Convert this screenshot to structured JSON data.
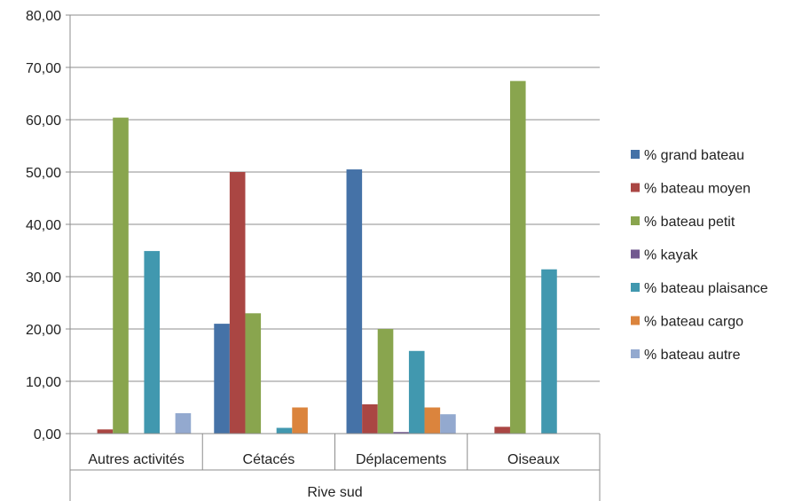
{
  "chart_data": {
    "type": "bar",
    "title": "",
    "xlabel": "",
    "ylabel": "",
    "ylim": [
      0,
      80
    ],
    "yticks": [
      "0,00",
      "10,00",
      "20,00",
      "30,00",
      "40,00",
      "50,00",
      "60,00",
      "70,00",
      "80,00"
    ],
    "ytick_values": [
      0,
      10,
      20,
      30,
      40,
      50,
      60,
      70,
      80
    ],
    "grid": true,
    "legend_position": "right",
    "group_label": "Rive sud",
    "categories": [
      "Autres activités",
      "Cétacés",
      "Déplacements",
      "Oiseaux"
    ],
    "series": [
      {
        "name": "% grand bateau",
        "color": "#4572a7",
        "values": [
          0,
          21,
          50.5,
          0
        ]
      },
      {
        "name": "% bateau moyen",
        "color": "#aa4643",
        "values": [
          0.8,
          50,
          5.6,
          1.3
        ]
      },
      {
        "name": "% bateau petit",
        "color": "#89a54e",
        "values": [
          60.4,
          23,
          20,
          67.4
        ]
      },
      {
        "name": "% kayak",
        "color": "#71588f",
        "values": [
          0,
          0,
          0.3,
          0
        ]
      },
      {
        "name": "% bateau plaisance",
        "color": "#4198af",
        "values": [
          34.9,
          1.1,
          15.8,
          31.4
        ]
      },
      {
        "name": "% bateau cargo",
        "color": "#db843d",
        "values": [
          0,
          5,
          5,
          0
        ]
      },
      {
        "name": "% bateau autre",
        "color": "#93a9cf",
        "values": [
          3.9,
          0,
          3.7,
          0
        ]
      }
    ]
  }
}
